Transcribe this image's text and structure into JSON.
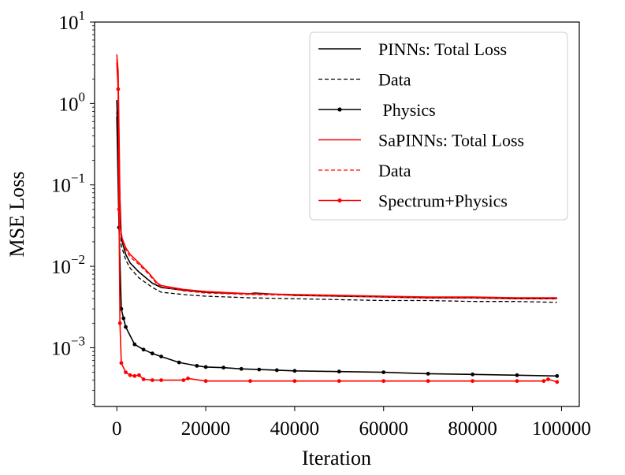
{
  "chart_data": {
    "type": "line",
    "title": "",
    "xlabel": "Iteration",
    "ylabel": "MSE Loss",
    "yscale": "log",
    "xlim": [
      -5000,
      104000
    ],
    "ylim": [
      0.00019,
      10
    ],
    "xticks": [
      0,
      20000,
      40000,
      60000,
      80000,
      100000
    ],
    "xtick_labels": [
      "0",
      "20000",
      "40000",
      "60000",
      "80000",
      "100000"
    ],
    "yticks": [
      {
        "value": 10,
        "base": "10",
        "exp": "1"
      },
      {
        "value": 1,
        "base": "10",
        "exp": "0"
      },
      {
        "value": 0.1,
        "base": "10",
        "exp": "−1"
      },
      {
        "value": 0.01,
        "base": "10",
        "exp": "−2"
      },
      {
        "value": 0.001,
        "base": "10",
        "exp": "−3"
      }
    ],
    "legend_position": "top-right",
    "series": [
      {
        "name": "PINNs: Total Loss",
        "color": "#000000",
        "dash": "solid",
        "markers": false,
        "x": [
          0,
          500,
          1000,
          2000,
          3000,
          5000,
          8000,
          10000,
          15000,
          20000,
          24000,
          30000,
          31000,
          40000,
          50000,
          60000,
          70000,
          80000,
          90000,
          99000
        ],
        "y": [
          1.1,
          0.15,
          0.022,
          0.014,
          0.011,
          0.0085,
          0.0062,
          0.0055,
          0.0051,
          0.0048,
          0.0047,
          0.0046,
          0.0047,
          0.0044,
          0.0043,
          0.0042,
          0.0041,
          0.0041,
          0.004,
          0.004
        ]
      },
      {
        "name": "Data",
        "color": "#000000",
        "dash": "dashed",
        "markers": false,
        "x": [
          0,
          500,
          1000,
          2000,
          3000,
          5000,
          8000,
          10000,
          15000,
          20000,
          30000,
          40000,
          50000,
          60000,
          70000,
          80000,
          90000,
          99000
        ],
        "y": [
          0.8,
          0.12,
          0.018,
          0.012,
          0.0095,
          0.0072,
          0.0055,
          0.0048,
          0.0045,
          0.0043,
          0.0041,
          0.004,
          0.0039,
          0.0038,
          0.0038,
          0.0037,
          0.0037,
          0.0036
        ]
      },
      {
        "name": " Physics",
        "color": "#000000",
        "dash": "solid",
        "markers": true,
        "x": [
          0,
          500,
          1000,
          1500,
          2000,
          4000,
          6000,
          8000,
          10000,
          14000,
          18000,
          20000,
          24000,
          28000,
          32000,
          36000,
          40000,
          50000,
          60000,
          70000,
          80000,
          90000,
          99000
        ],
        "y": [
          0.7,
          0.03,
          0.003,
          0.0023,
          0.0018,
          0.0011,
          0.00095,
          0.00085,
          0.00078,
          0.00066,
          0.0006,
          0.00058,
          0.00057,
          0.00055,
          0.00054,
          0.00053,
          0.00052,
          0.00051,
          0.0005,
          0.00048,
          0.00047,
          0.00046,
          0.00045
        ]
      },
      {
        "name": "SaPINNs: Total Loss",
        "color": "#ff0000",
        "dash": "solid",
        "markers": false,
        "x": [
          0,
          300,
          800,
          1200,
          2000,
          3000,
          5000,
          7000,
          9000,
          10000,
          15000,
          20000,
          30000,
          40000,
          50000,
          60000,
          70000,
          80000,
          90000,
          99000
        ],
        "y": [
          4.0,
          2.5,
          0.03,
          0.022,
          0.017,
          0.014,
          0.011,
          0.0085,
          0.0063,
          0.0058,
          0.0052,
          0.0049,
          0.0046,
          0.0045,
          0.0044,
          0.0043,
          0.0042,
          0.0042,
          0.0041,
          0.0041
        ]
      },
      {
        "name": "Data",
        "color": "#ff0000",
        "dash": "dashed",
        "markers": false,
        "x": [
          0,
          300,
          800,
          1200,
          2000,
          3000,
          5000,
          7000,
          9000,
          10000,
          15000,
          20000,
          30000,
          40000,
          50000,
          60000,
          70000,
          80000,
          90000,
          99000
        ],
        "y": [
          3.5,
          2.2,
          0.028,
          0.021,
          0.016,
          0.013,
          0.0105,
          0.0082,
          0.0061,
          0.0056,
          0.005,
          0.0047,
          0.0045,
          0.0044,
          0.0043,
          0.0042,
          0.0041,
          0.0041,
          0.004,
          0.004
        ]
      },
      {
        "name": "Spectrum+Physics",
        "color": "#ff0000",
        "dash": "solid",
        "markers": true,
        "x": [
          0,
          300,
          500,
          700,
          1000,
          2000,
          3000,
          4000,
          5000,
          6000,
          8000,
          10000,
          15000,
          16000,
          20000,
          30000,
          40000,
          50000,
          60000,
          70000,
          80000,
          90000,
          96000,
          97000,
          99000
        ],
        "y": [
          3.2,
          1.5,
          0.05,
          0.002,
          0.00065,
          0.0005,
          0.00046,
          0.00045,
          0.00046,
          0.00041,
          0.0004,
          0.0004,
          0.0004,
          0.00042,
          0.00039,
          0.00039,
          0.00039,
          0.00039,
          0.00039,
          0.00039,
          0.00039,
          0.00039,
          0.00039,
          0.00041,
          0.00038
        ]
      }
    ]
  }
}
